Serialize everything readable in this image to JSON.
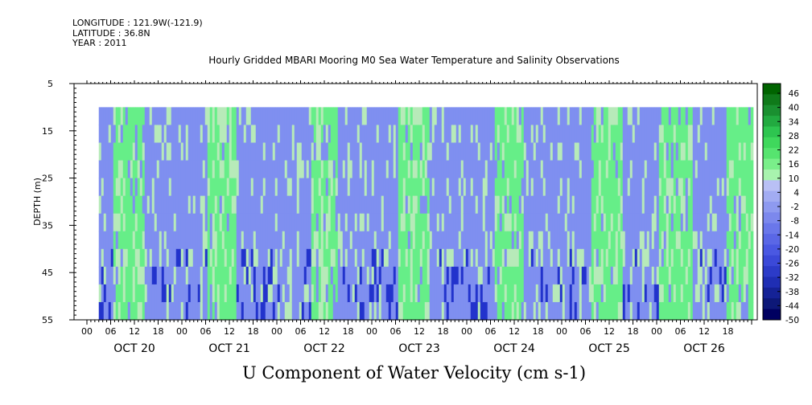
{
  "header": {
    "longitude": "LONGITUDE : 121.9W(-121.9)",
    "latitude": "LATITUDE : 36.8N",
    "year": "YEAR : 2011",
    "title": "Hourly Gridded MBARI Mooring M0 Sea Water Temperature and Salinity Observations"
  },
  "chart_data": {
    "type": "heatmap",
    "title": "Hourly Gridded MBARI Mooring M0 Sea Water Temperature and Salinity Observations",
    "xlabel": "",
    "ylabel": "DEPTH (m)",
    "caption": "U Component of Water Velocity (cm s-1)",
    "y_axis": {
      "ticks": [
        5,
        15,
        25,
        35,
        45,
        55
      ],
      "range": [
        5,
        55
      ],
      "inverted": true,
      "data_top": 10
    },
    "x_axis": {
      "hour_ticks": [
        "00",
        "06",
        "12",
        "18",
        "00",
        "06",
        "12",
        "18",
        "00",
        "06",
        "12",
        "18",
        "00",
        "06",
        "12",
        "18",
        "00",
        "06",
        "12",
        "18",
        "00",
        "06",
        "12",
        "18",
        "00",
        "06",
        "12",
        "18"
      ],
      "day_labels": [
        "OCT 20",
        "OCT 21",
        "OCT 22",
        "OCT 23",
        "OCT 24",
        "OCT 25",
        "OCT 26"
      ],
      "range_hours": [
        0,
        168
      ],
      "data_start_hour": 3
    },
    "colorbar": {
      "labels": [
        "46",
        "40",
        "34",
        "28",
        "22",
        "16",
        "10",
        "4",
        "-2",
        "-8",
        "-14",
        "-20",
        "-26",
        "-32",
        "-38",
        "-44",
        "-50"
      ],
      "range": [
        -50,
        52
      ]
    },
    "dominant_pattern": [
      {
        "day_hour": 3,
        "sign": "negative"
      },
      {
        "day_hour": 10,
        "sign": "positive"
      },
      {
        "day_hour": 18,
        "sign": "negative"
      },
      {
        "day_hour": 27,
        "sign": "negative"
      },
      {
        "day_hour": 33,
        "sign": "positive"
      },
      {
        "day_hour": 42,
        "sign": "negative"
      },
      {
        "day_hour": 53,
        "sign": "negative"
      },
      {
        "day_hour": 60,
        "sign": "positive"
      },
      {
        "day_hour": 66,
        "sign": "negative"
      },
      {
        "day_hour": 75,
        "sign": "negative"
      },
      {
        "day_hour": 82,
        "sign": "positive"
      },
      {
        "day_hour": 90,
        "sign": "negative"
      },
      {
        "day_hour": 100,
        "sign": "negative"
      },
      {
        "day_hour": 106,
        "sign": "positive"
      },
      {
        "day_hour": 114,
        "sign": "negative"
      },
      {
        "day_hour": 124,
        "sign": "negative"
      },
      {
        "day_hour": 130,
        "sign": "positive"
      },
      {
        "day_hour": 140,
        "sign": "negative"
      },
      {
        "day_hour": 148,
        "sign": "positive"
      },
      {
        "day_hour": 158,
        "sign": "negative"
      },
      {
        "day_hour": 165,
        "sign": "positive"
      }
    ]
  },
  "colors": {
    "positive": "#66ee88",
    "negative": "#7f8ff0",
    "strong_negative": "#2233cc",
    "near_zero": "#b7eab9"
  }
}
